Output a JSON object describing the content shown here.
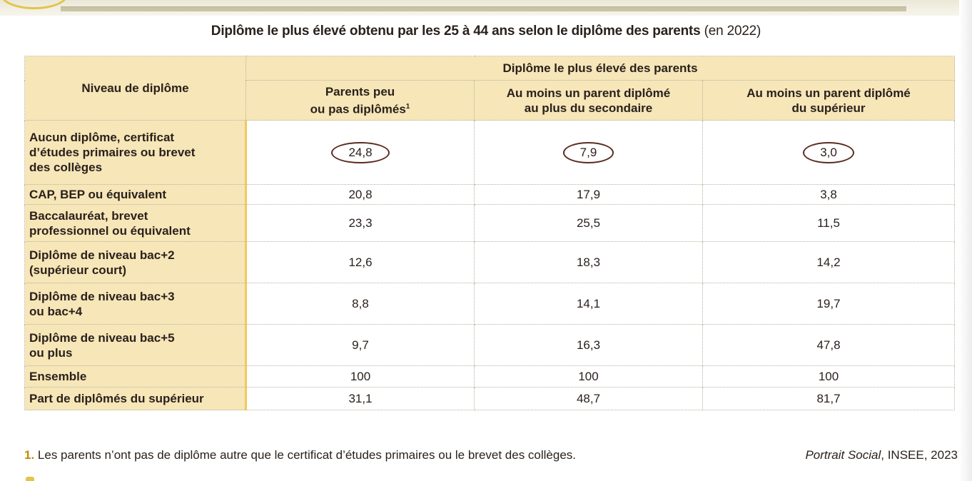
{
  "title": {
    "bold": "Diplôme le plus élevé obtenu par les 25 à 44 ans selon le diplôme des parents",
    "paren": "(en 2022)"
  },
  "table": {
    "row_header": "Niveau de diplôme",
    "group_header": "Diplôme le plus élevé des parents",
    "columns": [
      {
        "line1": "Parents peu",
        "line2": "ou pas diplômés",
        "sup": "1"
      },
      {
        "line1": "Au moins un parent diplômé",
        "line2": "au plus du secondaire",
        "sup": ""
      },
      {
        "line1": "Au moins un parent diplômé",
        "line2": "du supérieur",
        "sup": ""
      }
    ],
    "rows": [
      {
        "label": [
          "Aucun diplôme, certificat",
          "d’études primaires ou brevet",
          "des collèges"
        ],
        "values": [
          "24,8",
          "7,9",
          "3,0"
        ],
        "circled": true
      },
      {
        "label": [
          "CAP, BEP ou équivalent"
        ],
        "values": [
          "20,8",
          "17,9",
          "3,8"
        ]
      },
      {
        "label": [
          "Baccalauréat, brevet",
          "professionnel ou équivalent"
        ],
        "values": [
          "23,3",
          "25,5",
          "11,5"
        ]
      },
      {
        "label": [
          "Diplôme de niveau bac+2",
          "(supérieur court)"
        ],
        "values": [
          "12,6",
          "18,3",
          "14,2"
        ]
      },
      {
        "label": [
          "Diplôme de niveau bac+3",
          "ou bac+4"
        ],
        "values": [
          "8,8",
          "14,1",
          "19,7"
        ]
      },
      {
        "label": [
          "Diplôme de niveau bac+5",
          "ou plus"
        ],
        "values": [
          "9,7",
          "16,3",
          "47,8"
        ]
      },
      {
        "label": [
          "Ensemble"
        ],
        "values": [
          "100",
          "100",
          "100"
        ]
      },
      {
        "label": [
          "Part de diplômés du supérieur"
        ],
        "values": [
          "31,1",
          "48,7",
          "81,7"
        ]
      }
    ]
  },
  "footnote": {
    "number": "1.",
    "text": "Les parents n’ont pas de diplôme autre que le certificat d’études primaires ou le brevet des collèges."
  },
  "source": {
    "italic": "Portrait Social",
    "rest": ", INSEE, 2023"
  },
  "colors": {
    "header_fill": "#f6e6b8",
    "accent_border": "#f0c95e",
    "oval_stroke": "#5a2c22",
    "footnote_number": "#c48a00"
  }
}
